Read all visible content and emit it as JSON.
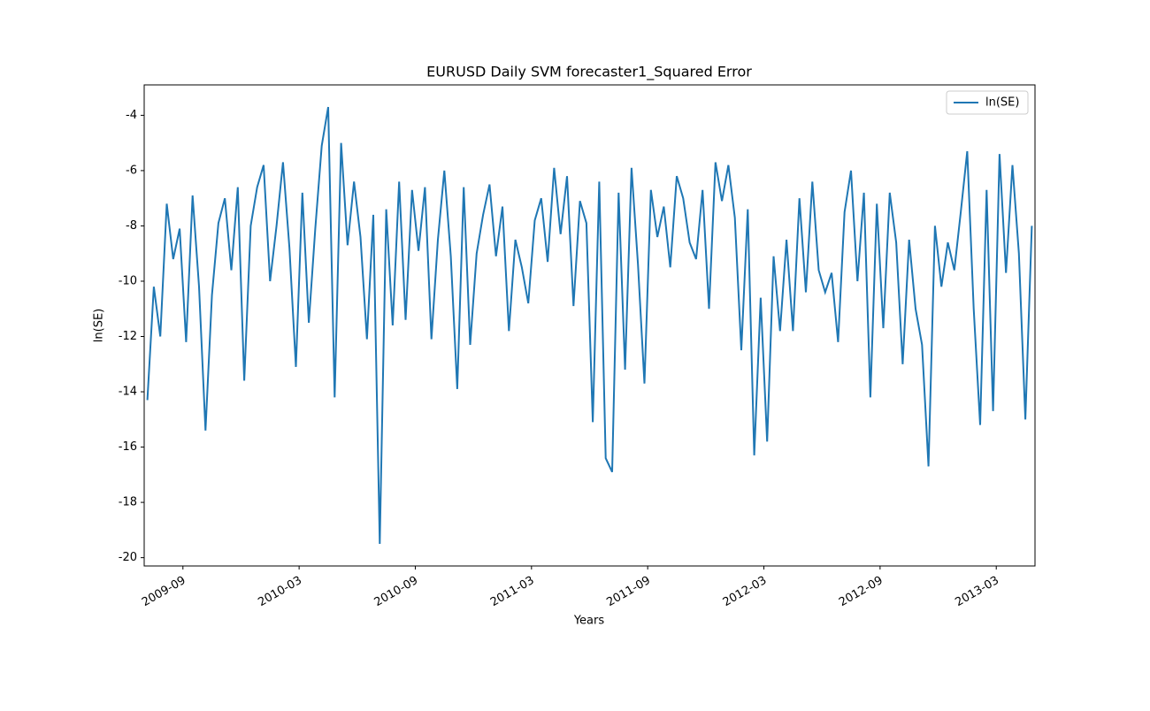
{
  "chart_data": {
    "type": "line",
    "title": "EURUSD Daily SVM forecaster1_Squared Error",
    "x_label": "Years",
    "y_label": "ln(SE)",
    "x": [
      "2009-07",
      "2009-07",
      "2009-07",
      "2009-08",
      "2009-08",
      "2009-08",
      "2009-09",
      "2009-09",
      "2009-09",
      "2009-10",
      "2009-10",
      "2009-10",
      "2009-11",
      "2009-11",
      "2009-11",
      "2009-12",
      "2009-12",
      "2009-12",
      "2010-01",
      "2010-01",
      "2010-01",
      "2010-02",
      "2010-02",
      "2010-02",
      "2010-03",
      "2010-03",
      "2010-03",
      "2010-04",
      "2010-04",
      "2010-04",
      "2010-05",
      "2010-05",
      "2010-05",
      "2010-06",
      "2010-06",
      "2010-06",
      "2010-07",
      "2010-07",
      "2010-07",
      "2010-08",
      "2010-08",
      "2010-08",
      "2010-09",
      "2010-09",
      "2010-09",
      "2010-10",
      "2010-10",
      "2010-10",
      "2010-11",
      "2010-11",
      "2010-11",
      "2010-12",
      "2010-12",
      "2010-12",
      "2011-01",
      "2011-01",
      "2011-01",
      "2011-02",
      "2011-02",
      "2011-02",
      "2011-03",
      "2011-03",
      "2011-03",
      "2011-04",
      "2011-04",
      "2011-04",
      "2011-05",
      "2011-05",
      "2011-05",
      "2011-06",
      "2011-06",
      "2011-06",
      "2011-07",
      "2011-07",
      "2011-07",
      "2011-08",
      "2011-08",
      "2011-08",
      "2011-09",
      "2011-09",
      "2011-09",
      "2011-10",
      "2011-10",
      "2011-10",
      "2011-11",
      "2011-11",
      "2011-11",
      "2011-12",
      "2011-12",
      "2011-12",
      "2012-01",
      "2012-01",
      "2012-01",
      "2012-02",
      "2012-02",
      "2012-02",
      "2012-03",
      "2012-03",
      "2012-03",
      "2012-04",
      "2012-04",
      "2012-04",
      "2012-05",
      "2012-05",
      "2012-05",
      "2012-06",
      "2012-06",
      "2012-06",
      "2012-07",
      "2012-07",
      "2012-07",
      "2012-08",
      "2012-08",
      "2012-08",
      "2012-09",
      "2012-09",
      "2012-09",
      "2012-10",
      "2012-10",
      "2012-10",
      "2012-11",
      "2012-11",
      "2012-11",
      "2012-12",
      "2012-12",
      "2012-12",
      "2013-01",
      "2013-01",
      "2013-01",
      "2013-02",
      "2013-02",
      "2013-02",
      "2013-03",
      "2013-03",
      "2013-03",
      "2013-04",
      "2013-04",
      "2013-04"
    ],
    "series": [
      {
        "name": "ln(SE)",
        "color": "#1f77b4",
        "values": [
          -14.3,
          -10.2,
          -12,
          -7.2,
          -9.2,
          -8.1,
          -12.2,
          -6.9,
          -10.2,
          -15.4,
          -10.5,
          -7.9,
          -7.0,
          -9.6,
          -6.6,
          -13.6,
          -8.0,
          -6.6,
          -5.8,
          -10.0,
          -8.0,
          -5.7,
          -8.8,
          -13.1,
          -6.8,
          -11.5,
          -8.1,
          -5.1,
          -3.7,
          -14.2,
          -5.0,
          -8.7,
          -6.4,
          -8.4,
          -12.1,
          -7.6,
          -19.5,
          -7.4,
          -11.6,
          -6.4,
          -11.4,
          -6.7,
          -8.9,
          -6.6,
          -12.1,
          -8.5,
          -6.0,
          -9.1,
          -13.9,
          -6.6,
          -12.3,
          -9.0,
          -7.6,
          -6.5,
          -9.1,
          -7.3,
          -11.8,
          -8.5,
          -9.5,
          -10.8,
          -7.8,
          -7.0,
          -9.3,
          -5.9,
          -8.3,
          -6.2,
          -10.9,
          -7.1,
          -7.9,
          -15.1,
          -6.4,
          -16.4,
          -16.9,
          -6.8,
          -13.2,
          -5.9,
          -9.4,
          -13.7,
          -6.7,
          -8.4,
          -7.3,
          -9.5,
          -6.2,
          -7.0,
          -8.6,
          -9.2,
          -6.7,
          -11.0,
          -5.7,
          -7.1,
          -5.8,
          -7.7,
          -12.5,
          -7.4,
          -16.3,
          -10.6,
          -15.8,
          -9.1,
          -11.8,
          -8.5,
          -11.8,
          -7.0,
          -10.4,
          -6.4,
          -9.6,
          -10.4,
          -9.7,
          -12.2,
          -7.5,
          -6.0,
          -10.0,
          -6.8,
          -14.2,
          -7.2,
          -11.7,
          -6.8,
          -8.6,
          -13.0,
          -8.5,
          -11.0,
          -12.3,
          -16.7,
          -8.0,
          -10.2,
          -8.6,
          -9.6,
          -7.5,
          -5.3,
          -11.0,
          -15.2,
          -6.7,
          -14.7,
          -5.4,
          -9.7,
          -5.8,
          -9.0,
          -15.0,
          -8.0
        ]
      }
    ],
    "xlim": [
      "2009-07",
      "2013-05"
    ],
    "xticks": [
      "2009-09",
      "2010-03",
      "2010-09",
      "2011-03",
      "2011-09",
      "2012-03",
      "2012-09",
      "2013-03"
    ],
    "ylim": [
      -20.3,
      -2.9
    ],
    "yticks": [
      -20,
      -18,
      -16,
      -14,
      -12,
      -10,
      -8,
      -6,
      -4
    ],
    "legend": "upper right"
  }
}
